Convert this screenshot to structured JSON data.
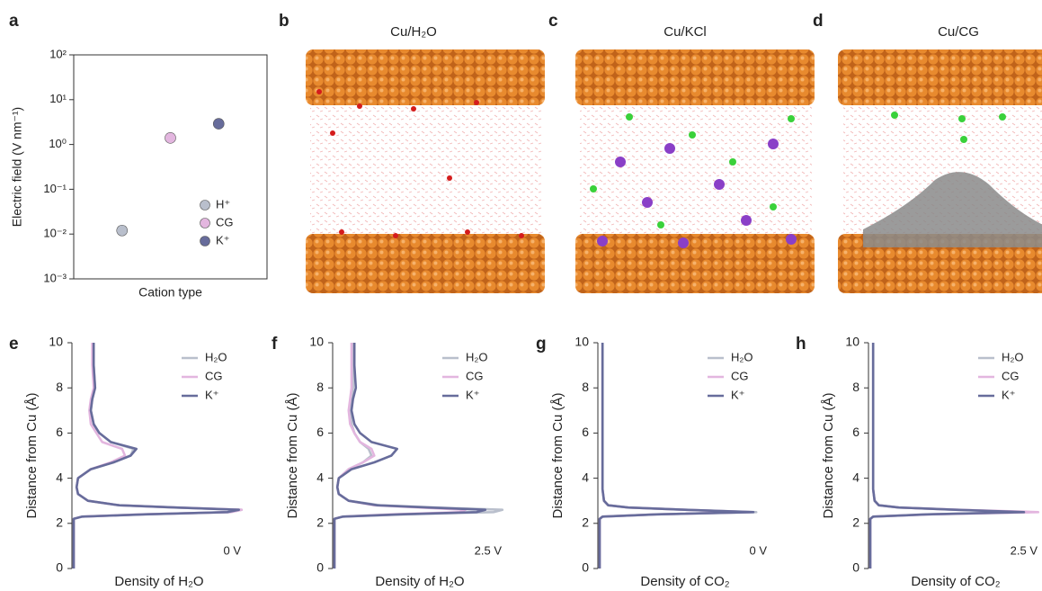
{
  "chart_data": [
    {
      "type": "scatter",
      "panel": "a",
      "ylabel": "Electric field (V nm⁻¹)",
      "xlabel": "Cation type",
      "log_y": true,
      "ylim": [
        0.001,
        100
      ],
      "yticks": [
        {
          "value": 0.001,
          "label": "10⁻³"
        },
        {
          "value": 0.01,
          "label": "10⁻²"
        },
        {
          "value": 0.1,
          "label": "10⁻¹"
        },
        {
          "value": 1,
          "label": "10⁰"
        },
        {
          "value": 10,
          "label": "10¹"
        },
        {
          "value": 100,
          "label": "10²"
        }
      ],
      "categories": [
        null,
        null,
        null
      ],
      "series": [
        {
          "name": "H⁺",
          "color": "#b9bfcc",
          "values": [
            0.012,
            null,
            null
          ]
        },
        {
          "name": "CG",
          "color": "#e3b6df",
          "values": [
            null,
            1.4,
            null
          ],
          "errors": [
            null,
            0.25,
            null
          ]
        },
        {
          "name": "K⁺",
          "color": "#676c9b",
          "values": [
            null,
            null,
            2.9
          ]
        }
      ]
    },
    {
      "type": "image",
      "panel": "b",
      "title": "Cu/H₂O"
    },
    {
      "type": "image",
      "panel": "c",
      "title": "Cu/KCl"
    },
    {
      "type": "image",
      "panel": "d",
      "title": "Cu/CG"
    },
    {
      "type": "line",
      "panel": "e",
      "xlabel": "Density of H₂O",
      "ylabel": "Distance from Cu (Å)",
      "annotation": "0 V",
      "xlim": [
        0,
        6
      ],
      "ylim": [
        0,
        10
      ],
      "yticks": [
        0,
        2,
        4,
        6,
        8,
        10
      ],
      "y": [
        0,
        2.2,
        2.3,
        2.4,
        2.5,
        2.6,
        2.7,
        2.8,
        3.0,
        3.3,
        3.6,
        4.0,
        4.4,
        4.7,
        5.0,
        5.3,
        5.6,
        6.0,
        6.4,
        7.0,
        7.5,
        8.0,
        9.0,
        10.0
      ],
      "series": [
        {
          "name": "H₂O",
          "color": "#b9bfcc",
          "values": [
            0,
            0,
            0.3,
            2.4,
            5.5,
            5.9,
            3.5,
            1.6,
            0.5,
            0.15,
            0.1,
            0.15,
            0.6,
            1.4,
            2.0,
            2.1,
            1.3,
            0.9,
            0.7,
            0.6,
            0.65,
            0.75,
            0.7,
            0.7
          ]
        },
        {
          "name": "CG",
          "color": "#e3b6df",
          "values": [
            0,
            0,
            0.3,
            2.4,
            5.5,
            5.9,
            3.6,
            1.6,
            0.5,
            0.15,
            0.1,
            0.15,
            0.6,
            1.3,
            1.8,
            1.7,
            1.0,
            0.8,
            0.6,
            0.55,
            0.6,
            0.7,
            0.65,
            0.65
          ]
        },
        {
          "name": "K⁺",
          "color": "#676c9b",
          "values": [
            0,
            0,
            0.3,
            2.5,
            5.4,
            5.8,
            3.6,
            1.6,
            0.5,
            0.15,
            0.1,
            0.15,
            0.6,
            1.4,
            2.0,
            2.2,
            1.3,
            0.9,
            0.7,
            0.6,
            0.65,
            0.75,
            0.7,
            0.7
          ]
        }
      ]
    },
    {
      "type": "line",
      "panel": "f",
      "xlabel": "Density of H₂O",
      "ylabel": "Distance from Cu (Å)",
      "annotation": "2.5 V",
      "xlim": [
        0,
        6
      ],
      "ylim": [
        0,
        10
      ],
      "yticks": [
        0,
        2,
        4,
        6,
        8,
        10
      ],
      "y": [
        0,
        2.2,
        2.3,
        2.4,
        2.5,
        2.6,
        2.7,
        2.8,
        3.0,
        3.3,
        3.6,
        4.0,
        4.4,
        4.7,
        5.0,
        5.3,
        5.6,
        6.0,
        6.4,
        7.0,
        7.5,
        8.0,
        9.0,
        10.0
      ],
      "series": [
        {
          "name": "H₂O",
          "color": "#b9bfcc",
          "values": [
            0,
            0,
            0.3,
            2.5,
            5.6,
            5.9,
            3.6,
            1.6,
            0.5,
            0.15,
            0.1,
            0.15,
            0.5,
            1.0,
            1.3,
            1.2,
            0.9,
            0.7,
            0.6,
            0.55,
            0.6,
            0.65,
            0.65,
            0.65
          ]
        },
        {
          "name": "CG",
          "color": "#e3b6df",
          "values": [
            0,
            0,
            0.3,
            2.0,
            4.4,
            4.6,
            3.0,
            1.4,
            0.5,
            0.15,
            0.1,
            0.15,
            0.5,
            1.0,
            1.4,
            1.3,
            0.9,
            0.7,
            0.55,
            0.5,
            0.55,
            0.6,
            0.6,
            0.6
          ]
        },
        {
          "name": "K⁺",
          "color": "#676c9b",
          "values": [
            0,
            0,
            0.3,
            2.3,
            5.0,
            5.3,
            3.3,
            1.5,
            0.5,
            0.15,
            0.1,
            0.15,
            0.6,
            1.4,
            2.0,
            2.2,
            1.3,
            0.9,
            0.7,
            0.6,
            0.65,
            0.75,
            0.7,
            0.7
          ]
        }
      ]
    },
    {
      "type": "line",
      "panel": "g",
      "xlabel": "Density of CO₂",
      "ylabel": "Distance from Cu (Å)",
      "annotation": "0 V",
      "xlim": [
        0,
        6
      ],
      "ylim": [
        0,
        10
      ],
      "yticks": [
        0,
        2,
        4,
        6,
        8,
        10
      ],
      "y": [
        0,
        2.2,
        2.3,
        2.4,
        2.5,
        2.6,
        2.7,
        2.8,
        3.0,
        3.5,
        5.0,
        10.0
      ],
      "series": [
        {
          "name": "H₂O",
          "color": "#b9bfcc",
          "values": [
            0,
            0,
            0.1,
            2.0,
            5.5,
            3.0,
            1.0,
            0.3,
            0.15,
            0.1,
            0.1,
            0.1
          ]
        },
        {
          "name": "CG",
          "color": "#e3b6df",
          "values": [
            0,
            0,
            0.1,
            2.0,
            5.3,
            3.0,
            1.0,
            0.3,
            0.15,
            0.1,
            0.1,
            0.1
          ]
        },
        {
          "name": "K⁺",
          "color": "#676c9b",
          "values": [
            0,
            0,
            0.1,
            2.0,
            5.4,
            3.0,
            1.0,
            0.3,
            0.15,
            0.1,
            0.1,
            0.1
          ]
        }
      ]
    },
    {
      "type": "line",
      "panel": "h",
      "xlabel": "Density of CO₂",
      "ylabel": "Distance from Cu (Å)",
      "annotation": "2.5 V",
      "xlim": [
        0,
        6
      ],
      "ylim": [
        0,
        10
      ],
      "yticks": [
        0,
        2,
        4,
        6,
        8,
        10
      ],
      "y": [
        0,
        2.2,
        2.3,
        2.4,
        2.5,
        2.6,
        2.7,
        2.8,
        3.0,
        3.5,
        5.0,
        10.0
      ],
      "series": [
        {
          "name": "H₂O",
          "color": "#b9bfcc",
          "values": [
            0,
            0,
            0.1,
            2.0,
            5.6,
            3.0,
            1.0,
            0.3,
            0.15,
            0.1,
            0.1,
            0.1
          ]
        },
        {
          "name": "CG",
          "color": "#e3b6df",
          "values": [
            0,
            0,
            0.1,
            2.1,
            5.9,
            3.1,
            1.0,
            0.3,
            0.15,
            0.1,
            0.1,
            0.1
          ]
        },
        {
          "name": "K⁺",
          "color": "#676c9b",
          "values": [
            0,
            0,
            0.1,
            2.0,
            5.4,
            3.0,
            1.0,
            0.3,
            0.15,
            0.1,
            0.1,
            0.1
          ]
        }
      ]
    }
  ]
}
